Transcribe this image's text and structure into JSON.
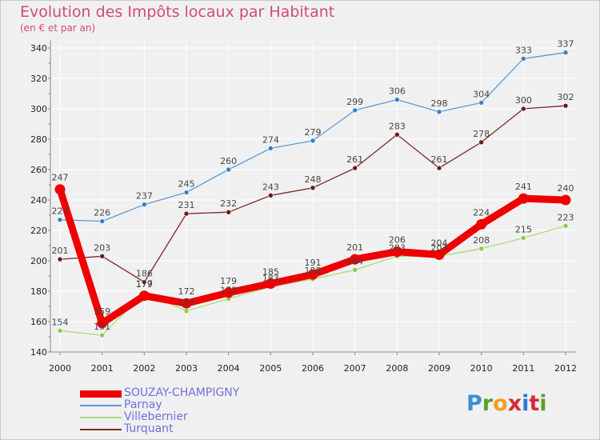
{
  "header": {
    "title": "Evolution des Impôts locaux par Habitant",
    "subtitle": "(en € et par an)"
  },
  "logo": {
    "letters": [
      "P",
      "r",
      "o",
      "x",
      "i",
      "t",
      "i"
    ],
    "colors": [
      "#3a8fd6",
      "#5aa02c",
      "#f0a020",
      "#d62a3a",
      "#2a7ad6",
      "#d62a3a",
      "#5aa02c"
    ]
  },
  "chart_data": {
    "type": "line",
    "title": "Evolution des Impôts locaux par Habitant",
    "subtitle": "(en € et par an)",
    "x": [
      "2000",
      "2001",
      "2002",
      "2003",
      "2004",
      "2005",
      "2006",
      "2007",
      "2008",
      "2009",
      "2010",
      "2011",
      "2012"
    ],
    "ylim": [
      140,
      340
    ],
    "yticks": [
      "140",
      "160",
      "180",
      "200",
      "220",
      "240",
      "260",
      "280",
      "300",
      "320",
      "340"
    ],
    "grid": true,
    "series": [
      {
        "name": "Parnay",
        "color": "#5b9bd5",
        "marker": "#3a7fc4",
        "width": "thin",
        "values": [
          227,
          226,
          237,
          245,
          260,
          274,
          279,
          299,
          306,
          298,
          304,
          333,
          337
        ],
        "labels": [
          "227",
          "226",
          "237",
          "245",
          "260",
          "274",
          "279",
          "299",
          "306",
          "298",
          "304",
          "333",
          "337"
        ]
      },
      {
        "name": "Turquant",
        "color": "#7a2a2a",
        "marker": "#6a1a1a",
        "width": "thin",
        "values": [
          201,
          203,
          186,
          231,
          232,
          243,
          248,
          261,
          283,
          261,
          278,
          300,
          302
        ],
        "labels": [
          "201",
          "203",
          "186",
          "231",
          "232",
          "243",
          "248",
          "261",
          "283",
          "261",
          "278",
          "300",
          "302"
        ]
      },
      {
        "name": "Villebernier",
        "color": "#a8dc78",
        "marker": "#88cc44",
        "width": "thin",
        "values": [
          154,
          151,
          179,
          167,
          175,
          183,
          188,
          194,
          203,
          203,
          208,
          215,
          223
        ],
        "labels": [
          "154",
          "151",
          "179",
          "167",
          "175",
          "183",
          "188",
          "194",
          "203",
          "203",
          "208",
          "215",
          "223"
        ]
      },
      {
        "name": "SOUZAY-CHAMPIGNY",
        "color": "#ee0000",
        "marker": "#ee0000",
        "width": "thick",
        "values": [
          247,
          159,
          177,
          172,
          179,
          185,
          191,
          201,
          206,
          204,
          224,
          241,
          240
        ],
        "labels": [
          "247",
          "159",
          "177",
          "172",
          "179",
          "185",
          "191",
          "201",
          "206",
          "204",
          "224",
          "241",
          "240"
        ]
      }
    ],
    "legend": [
      {
        "name": "SOUZAY-CHAMPIGNY",
        "color": "#ee0000",
        "width": "thick"
      },
      {
        "name": "Parnay",
        "color": "#5b9bd5",
        "width": "thin"
      },
      {
        "name": "Villebernier",
        "color": "#a8dc78",
        "width": "thin"
      },
      {
        "name": "Turquant",
        "color": "#7a2a2a",
        "width": "thin"
      }
    ],
    "legend_position": "bottom-left"
  }
}
